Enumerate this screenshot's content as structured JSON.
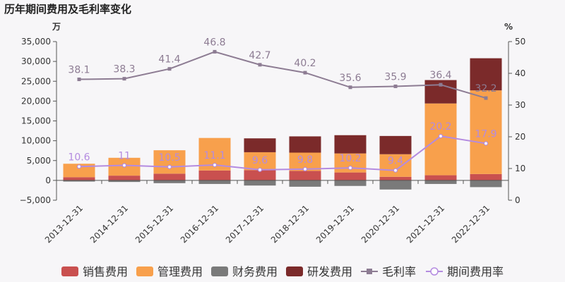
{
  "chart_data": {
    "type": "bar",
    "title": "历年期间费用及毛利率变化",
    "left_unit": "万",
    "right_unit": "%",
    "categories": [
      "2013-12-31",
      "2014-12-31",
      "2015-12-31",
      "2016-12-31",
      "2017-12-31",
      "2018-12-31",
      "2019-12-31",
      "2020-12-31",
      "2021-12-31",
      "2022-12-31"
    ],
    "stacked": true,
    "series": [
      {
        "name": "销售费用",
        "type": "bar",
        "axis": "left",
        "color": "#c9504f",
        "values": [
          800,
          1200,
          1700,
          2500,
          2600,
          2400,
          2000,
          900,
          1300,
          1600
        ]
      },
      {
        "name": "管理费用",
        "type": "bar",
        "axis": "left",
        "color": "#f8a04c",
        "values": [
          3400,
          4500,
          5900,
          8200,
          4500,
          4600,
          4800,
          5700,
          18100,
          21100
        ]
      },
      {
        "name": "财务费用",
        "type": "bar",
        "axis": "left",
        "color": "#7a7a7a",
        "values": [
          -300,
          -400,
          -700,
          -900,
          -1300,
          -1600,
          -1400,
          -2300,
          -900,
          -1700
        ]
      },
      {
        "name": "研发费用",
        "type": "bar",
        "axis": "left",
        "color": "#7b2a2a",
        "values": [
          0,
          0,
          0,
          0,
          3500,
          4100,
          4600,
          4600,
          5900,
          8100
        ]
      },
      {
        "name": "毛利率",
        "type": "line",
        "axis": "right",
        "color": "#8d7c93",
        "marker": "square",
        "values": [
          38.1,
          38.3,
          41.4,
          46.8,
          42.7,
          40.2,
          35.6,
          35.9,
          36.4,
          32.2
        ]
      },
      {
        "name": "期间费用率",
        "type": "line",
        "axis": "right",
        "color": "#b48be0",
        "marker": "circle",
        "values": [
          10.6,
          11,
          10.5,
          11.1,
          9.6,
          9.8,
          10.2,
          9.4,
          20.2,
          17.9
        ]
      }
    ],
    "y_left": {
      "min": -5000,
      "max": 35000,
      "ticks": [
        -5000,
        0,
        5000,
        10000,
        15000,
        20000,
        25000,
        30000,
        35000
      ],
      "tick_labels": [
        "−5,000",
        "0",
        "5,000",
        "10,000",
        "15,000",
        "20,000",
        "25,000",
        "30,000",
        "35,000"
      ]
    },
    "y_right": {
      "min": 0,
      "max": 50,
      "ticks": [
        0,
        10,
        20,
        30,
        40,
        50
      ],
      "tick_labels": [
        "0",
        "10",
        "20",
        "30",
        "40",
        "50"
      ]
    },
    "grid": false,
    "legend_position": "bottom"
  }
}
